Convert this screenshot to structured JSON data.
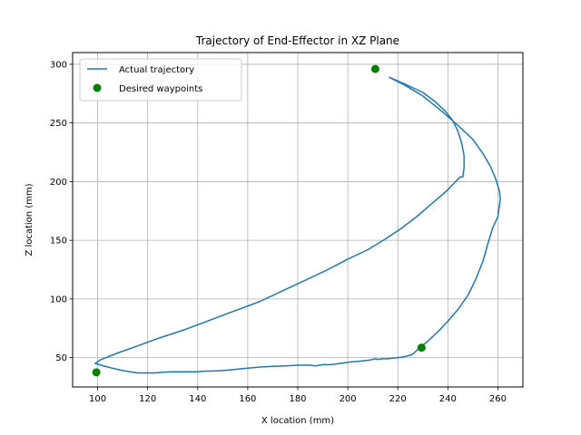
{
  "chart_data": {
    "type": "line",
    "title": "Trajectory of End-Effector in XZ Plane",
    "xlabel": "X location (mm)",
    "ylabel": "Z location (mm)",
    "xlim": [
      90,
      270
    ],
    "ylim": [
      25,
      310
    ],
    "xticks": [
      100,
      120,
      140,
      160,
      180,
      200,
      220,
      240,
      260
    ],
    "yticks": [
      50,
      100,
      150,
      200,
      250,
      300
    ],
    "grid": true,
    "legend_position": "upper-left",
    "colors": {
      "line": "#1f77b4",
      "waypoint": "#008000",
      "grid": "#b0b0b0"
    },
    "series": [
      {
        "name": "Actual trajectory",
        "kind": "line",
        "x": [
          216.5,
          223,
          230,
          235,
          239,
          242,
          244,
          245.5,
          246.5,
          246.5,
          246,
          245,
          243.5,
          240,
          234,
          228,
          222,
          215,
          208,
          200,
          192,
          183,
          174,
          165,
          155,
          145,
          135,
          125,
          116,
          108,
          101,
          99,
          104,
          110,
          113,
          116,
          120,
          123,
          126,
          130,
          135,
          140,
          143,
          145,
          150,
          155,
          160,
          165,
          170,
          175,
          180,
          185,
          187,
          190,
          193,
          195,
          200,
          205,
          209,
          211,
          212,
          214,
          216,
          218,
          220,
          222,
          223,
          225,
          226,
          227,
          229,
          232,
          236,
          240,
          244,
          248,
          251,
          254,
          256,
          258,
          260,
          260.5,
          261,
          260.5,
          259,
          257,
          254,
          250,
          244,
          237,
          230,
          223,
          216.5
        ],
        "y": [
          289,
          283,
          276,
          268,
          260,
          252,
          243,
          233,
          222,
          212,
          204,
          204,
          201,
          193,
          182,
          171,
          161,
          151,
          142,
          134,
          125,
          116,
          107,
          98,
          90,
          82,
          74,
          67,
          60,
          54,
          48,
          45,
          42,
          39,
          38,
          37,
          37,
          37,
          37.5,
          38,
          38,
          38,
          38.5,
          38.5,
          39,
          40,
          41,
          42,
          42.5,
          43,
          43.5,
          43.5,
          43,
          44,
          44,
          44.5,
          46,
          47,
          48,
          49,
          48.5,
          49,
          49,
          49.5,
          50,
          50.5,
          51,
          52,
          53,
          55,
          59,
          64,
          72,
          81,
          91,
          103,
          116,
          132,
          147,
          161,
          170,
          178,
          185,
          193,
          203,
          213,
          224,
          236,
          248,
          261,
          273,
          282,
          289
        ]
      },
      {
        "name": "Desired waypoints",
        "kind": "scatter",
        "points": [
          {
            "x": 211,
            "y": 296
          },
          {
            "x": 229.5,
            "y": 58.5
          },
          {
            "x": 99.5,
            "y": 37.5
          }
        ]
      }
    ]
  }
}
